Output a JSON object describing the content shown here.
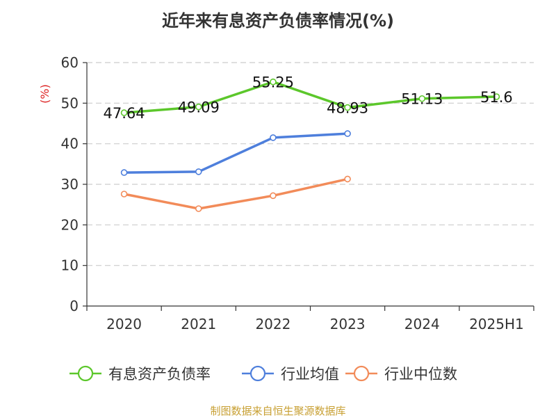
{
  "title": "近年来有息资产负债率情况(%)",
  "source": "制图数据来自恒生聚源数据库",
  "chart_data": {
    "type": "line",
    "title": "近年来有息资产负债率情况(%)",
    "ylabel": "(%)",
    "xlabel": "",
    "categories": [
      "2020",
      "2021",
      "2022",
      "2023",
      "2024",
      "2025H1"
    ],
    "ylim": [
      0,
      60
    ],
    "yticks": [
      0,
      10,
      20,
      30,
      40,
      50,
      60
    ],
    "grid": true,
    "legend_position": "bottom",
    "series": [
      {
        "name": "有息资产负债率",
        "color": "#5cc72b",
        "values": [
          47.64,
          49.09,
          55.25,
          48.93,
          51.13,
          51.6
        ],
        "labels": [
          "47.64",
          "49.09",
          "55.25",
          "48.93",
          "51.13",
          "51.6"
        ]
      },
      {
        "name": "行业均值",
        "color": "#4e7fdc",
        "values": [
          32.9,
          33.1,
          41.5,
          42.5,
          null,
          null
        ]
      },
      {
        "name": "行业中位数",
        "color": "#f28b59",
        "values": [
          27.6,
          24.0,
          27.2,
          31.3,
          null,
          null
        ]
      }
    ]
  },
  "colors": {
    "axis": "#333333",
    "grid": "#cccccc",
    "unit": "#dd2222",
    "source": "#c8a033"
  }
}
